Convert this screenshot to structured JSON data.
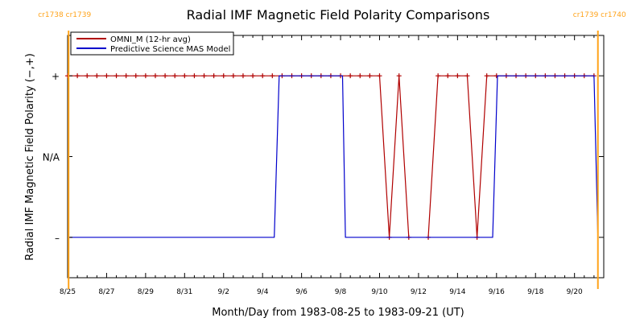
{
  "chart_data": {
    "type": "line",
    "title": "Radial IMF Magnetic Field Polarity Comparisons",
    "xlabel": "Month/Day from 1983-08-25 to 1983-09-21 (UT)",
    "ylabel": "Radial IMF Magnetic Field Polarity (−,+)",
    "x_start_date": "1983-08-25",
    "xlim": [
      0,
      27.5
    ],
    "ylim": [
      -1.5,
      1.5
    ],
    "x_ticks": [
      {
        "day": 0,
        "label": "8/25"
      },
      {
        "day": 2,
        "label": "8/27"
      },
      {
        "day": 4,
        "label": "8/29"
      },
      {
        "day": 6,
        "label": "8/31"
      },
      {
        "day": 8,
        "label": "9/2"
      },
      {
        "day": 10,
        "label": "9/4"
      },
      {
        "day": 12,
        "label": "9/6"
      },
      {
        "day": 14,
        "label": "9/8"
      },
      {
        "day": 16,
        "label": "9/10"
      },
      {
        "day": 18,
        "label": "9/12"
      },
      {
        "day": 20,
        "label": "9/14"
      },
      {
        "day": 22,
        "label": "9/16"
      },
      {
        "day": 24,
        "label": "9/18"
      },
      {
        "day": 26,
        "label": "9/20"
      }
    ],
    "y_ticks": [
      {
        "value": 1,
        "label": "+"
      },
      {
        "value": 0,
        "label": "N/A"
      },
      {
        "value": -1,
        "label": "–"
      }
    ],
    "carrington_markers": [
      {
        "day": 0.05,
        "label": "cr1738 cr1739",
        "align": "left"
      },
      {
        "day": 27.2,
        "label": "cr1739 cr1740",
        "align": "right"
      }
    ],
    "legend": {
      "position": "top-left",
      "entries": [
        {
          "name": "OMNI_M (12-hr avg)",
          "color": "#b00000"
        },
        {
          "name": "Predictive Science MAS Model",
          "color": "#0000cc"
        }
      ]
    },
    "series": [
      {
        "name": "OMNI_M (12-hr avg)",
        "color": "#b00000",
        "marker": "+",
        "x": [
          0,
          0.5,
          1,
          1.5,
          2,
          2.5,
          3,
          3.5,
          4,
          4.5,
          5,
          5.5,
          6,
          6.5,
          7,
          7.5,
          8,
          8.5,
          9,
          9.5,
          10,
          10.5,
          11,
          11.5,
          12,
          12.5,
          13,
          13.5,
          14,
          14.5,
          15,
          15.5,
          16,
          16.5,
          17,
          17.5,
          18,
          18.5,
          19,
          19.5,
          20,
          20.5,
          21,
          21.5,
          22,
          22.5,
          23,
          23.5,
          24,
          24.5,
          25,
          25.5,
          26,
          26.5,
          27
        ],
        "values": [
          1,
          1,
          1,
          1,
          1,
          1,
          1,
          1,
          1,
          1,
          1,
          1,
          1,
          1,
          1,
          1,
          1,
          1,
          1,
          1,
          1,
          1,
          1,
          1,
          1,
          1,
          1,
          1,
          1,
          1,
          1,
          1,
          1,
          -1,
          1,
          -1,
          null,
          -1,
          1,
          1,
          1,
          1,
          -1,
          1,
          1,
          1,
          1,
          1,
          1,
          1,
          1,
          1,
          1,
          1,
          1
        ]
      },
      {
        "name": "Predictive Science MAS Model",
        "color": "#0000cc",
        "x": [
          0,
          10.6,
          10.85,
          14.1,
          14.25,
          21.8,
          22.05,
          27.0,
          27.2
        ],
        "values": [
          -1,
          -1,
          1,
          1,
          -1,
          -1,
          1,
          1,
          -1
        ]
      }
    ]
  },
  "colors": {
    "omni": "#b00000",
    "mas": "#0000cc",
    "carrington": "#ffa31a",
    "axes": "#000000"
  }
}
